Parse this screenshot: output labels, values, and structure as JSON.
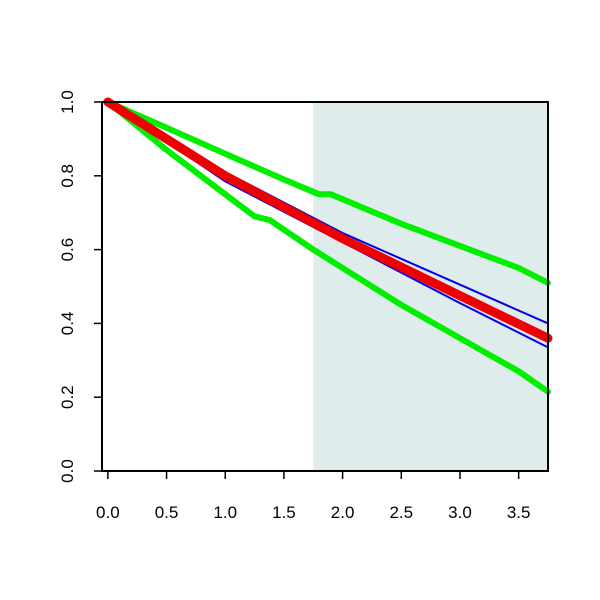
{
  "chart_data": {
    "type": "line",
    "title": "",
    "xlabel": "",
    "ylabel": "",
    "xlim": [
      -0.05,
      3.75
    ],
    "ylim": [
      0.0,
      1.0
    ],
    "x_ticks": [
      "0.0",
      "0.5",
      "1.0",
      "1.5",
      "2.0",
      "2.5",
      "3.0",
      "3.5"
    ],
    "y_ticks": [
      "0.0",
      "0.2",
      "0.4",
      "0.6",
      "0.8",
      "1.0"
    ],
    "grid": false,
    "shaded_region": {
      "x_from": 1.75,
      "x_to": 3.75,
      "color": "#dfecec"
    },
    "series": [
      {
        "role": "upper-band",
        "color": "#00ee00",
        "x": [
          0.0,
          0.5,
          1.0,
          1.5,
          1.8,
          1.9,
          2.5,
          3.0,
          3.5,
          3.75
        ],
        "y": [
          1.0,
          0.93,
          0.86,
          0.79,
          0.75,
          0.75,
          0.67,
          0.61,
          0.55,
          0.51
        ]
      },
      {
        "role": "lower-band",
        "color": "#00ee00",
        "x": [
          0.0,
          0.5,
          1.0,
          1.25,
          1.38,
          1.75,
          2.0,
          2.5,
          3.0,
          3.5,
          3.75
        ],
        "y": [
          1.0,
          0.87,
          0.75,
          0.69,
          0.68,
          0.6,
          0.55,
          0.45,
          0.36,
          0.27,
          0.215
        ]
      },
      {
        "role": "ci-upper",
        "color": "#0000ee",
        "x": [
          0.0,
          1.0,
          2.0,
          3.0,
          3.75
        ],
        "y": [
          1.0,
          0.81,
          0.645,
          0.505,
          0.4
        ]
      },
      {
        "role": "ci-lower",
        "color": "#0000ee",
        "x": [
          0.0,
          1.0,
          2.0,
          3.0,
          3.75
        ],
        "y": [
          1.0,
          0.785,
          0.62,
          0.455,
          0.335
        ]
      },
      {
        "role": "estimate",
        "color": "#ee0000",
        "x": [
          0.0,
          1.0,
          2.0,
          3.0,
          3.75
        ],
        "y": [
          1.0,
          0.8,
          0.63,
          0.475,
          0.36
        ]
      }
    ]
  }
}
